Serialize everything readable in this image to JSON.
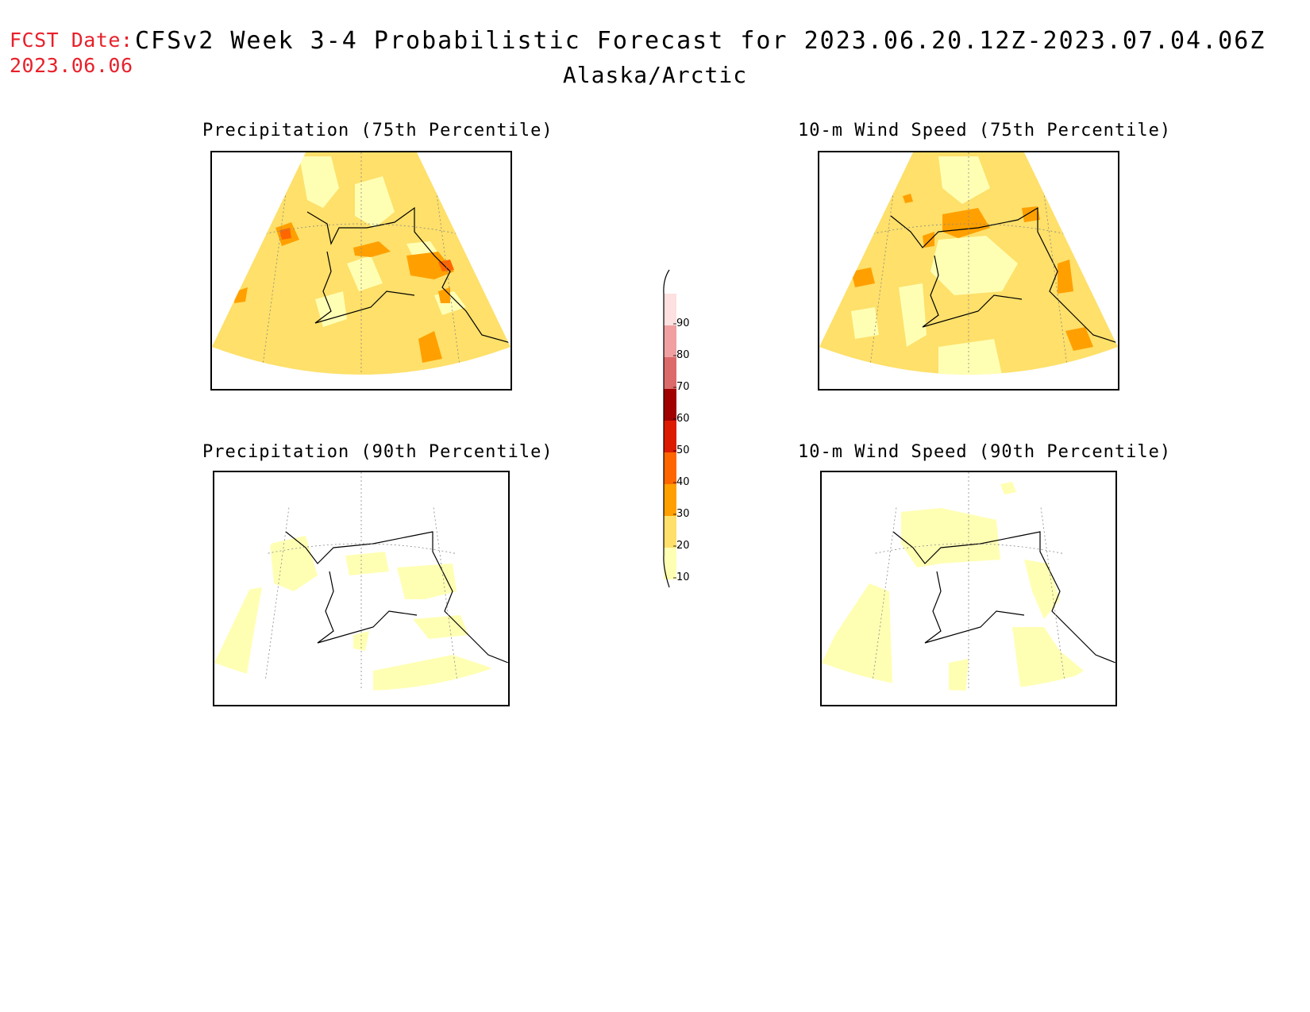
{
  "header": {
    "fcst_label": "FCST Date:",
    "fcst_date": "2023.06.06",
    "title": "CFSv2 Week 3-4 Probabilistic Forecast for 2023.06.20.12Z-2023.07.04.06Z",
    "region": "Alaska/Arctic"
  },
  "panels": [
    {
      "id": "precip75",
      "title": "Precipitation (75th Percentile)"
    },
    {
      "id": "wind75",
      "title": "10-m Wind Speed (75th Percentile)"
    },
    {
      "id": "precip90",
      "title": "Precipitation (90th Percentile)"
    },
    {
      "id": "wind90",
      "title": "10-m Wind Speed (90th Percentile)"
    }
  ],
  "colorbar": {
    "labels": [
      "90",
      "80",
      "70",
      "60",
      "50",
      "40",
      "30",
      "20",
      "10"
    ],
    "colors": [
      "#fde0e0",
      "#f0a0a0",
      "#dc6a6a",
      "#a00000",
      "#dc1a00",
      "#ff6600",
      "#ffa000",
      "#fee06a",
      "#ffffb4"
    ]
  },
  "colors": {
    "header_red": "#e8202a",
    "prob_10_20": "#ffffb4",
    "prob_20_30": "#fee06a",
    "prob_30_40": "#ffa000",
    "prob_40_50": "#ff6600"
  }
}
